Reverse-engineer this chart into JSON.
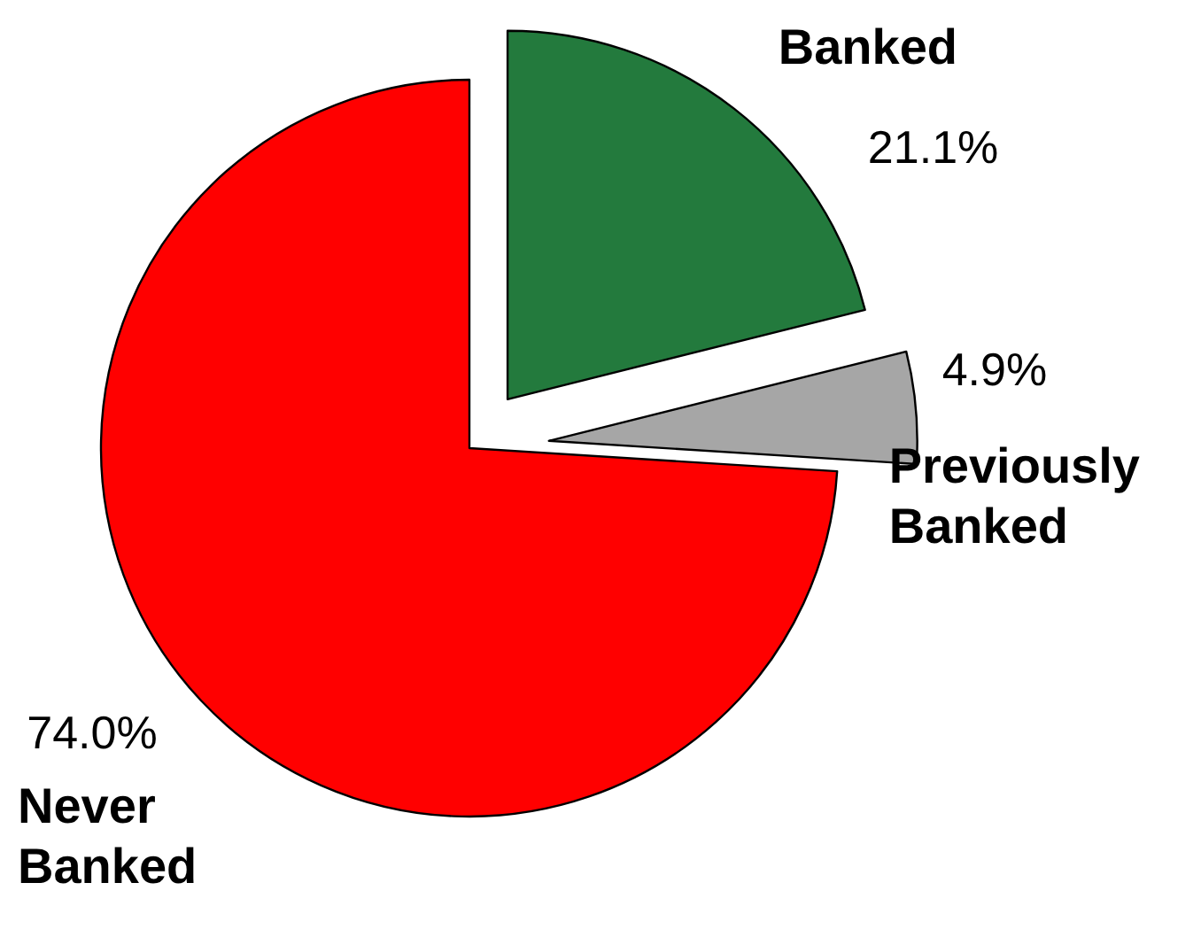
{
  "chart_data": {
    "type": "pie",
    "categories": [
      "Banked",
      "Previously Banked",
      "Never Banked"
    ],
    "values": [
      21.1,
      4.9,
      74.0
    ],
    "colors": [
      "#237a3d",
      "#a6a6a6",
      "#ff0000"
    ],
    "value_labels": [
      "21.1%",
      "4.9%",
      "74.0%"
    ]
  }
}
